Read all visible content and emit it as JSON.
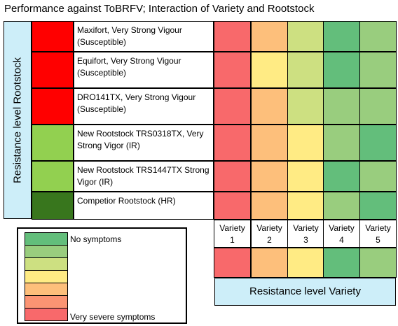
{
  "title": "Performance against ToBRFV; Interaction of Variety and Rootstock",
  "rootstock_axis_label": "Resistance level Rootstock",
  "variety_axis_label": "Resistance level Variety",
  "legend": {
    "top_label": "No symptoms",
    "bottom_label": "Very severe symptoms",
    "scale_colors": [
      "#63be7b",
      "#99cd7e",
      "#cde081",
      "#ffeb84",
      "#fdbf7b",
      "#fb9473",
      "#f8696b"
    ]
  },
  "chart_data": {
    "type": "heatmap",
    "title": "Performance against ToBRFV; Interaction of Variety and Rootstock",
    "xlabel": "Resistance level Variety",
    "ylabel": "Resistance level Rootstock",
    "scale": "1 = No symptoms ... 7 = Very severe symptoms",
    "columns": [
      {
        "line1": "Variety",
        "line2": "1"
      },
      {
        "line1": "Variety",
        "line2": "2"
      },
      {
        "line1": "Variety",
        "line2": "3"
      },
      {
        "line1": "Variety",
        "line2": "4"
      },
      {
        "line1": "Variety",
        "line2": "5"
      }
    ],
    "rows": [
      {
        "label": "Maxifort, Very Strong Vigour (Susceptible)",
        "rootstock_color": "#ff0000",
        "values": [
          7,
          5,
          3,
          1,
          2
        ]
      },
      {
        "label": "Equifort, Very Strong Vigour (Susceptible)",
        "rootstock_color": "#ff0000",
        "values": [
          7,
          4,
          3,
          1,
          2
        ]
      },
      {
        "label": "DRO141TX, Very Strong Vigour (Susceptible)",
        "rootstock_color": "#ff0000",
        "values": [
          7,
          5,
          3,
          2,
          2
        ]
      },
      {
        "label": "New Rootstock   TRS0318TX, Very Strong Vigor (IR)",
        "rootstock_color": "#92d050",
        "values": [
          7,
          5,
          4,
          2,
          1
        ]
      },
      {
        "label": "New Rootstock TRS1447TX  Strong Vigor (IR)",
        "rootstock_color": "#92d050",
        "values": [
          7,
          5,
          4,
          1,
          2
        ]
      },
      {
        "label": "Competior Rootstock (HR)",
        "rootstock_color": "#38761d",
        "values": [
          7,
          5,
          4,
          2,
          1
        ]
      }
    ],
    "variety_row": [
      7,
      5,
      4,
      1,
      2
    ]
  }
}
